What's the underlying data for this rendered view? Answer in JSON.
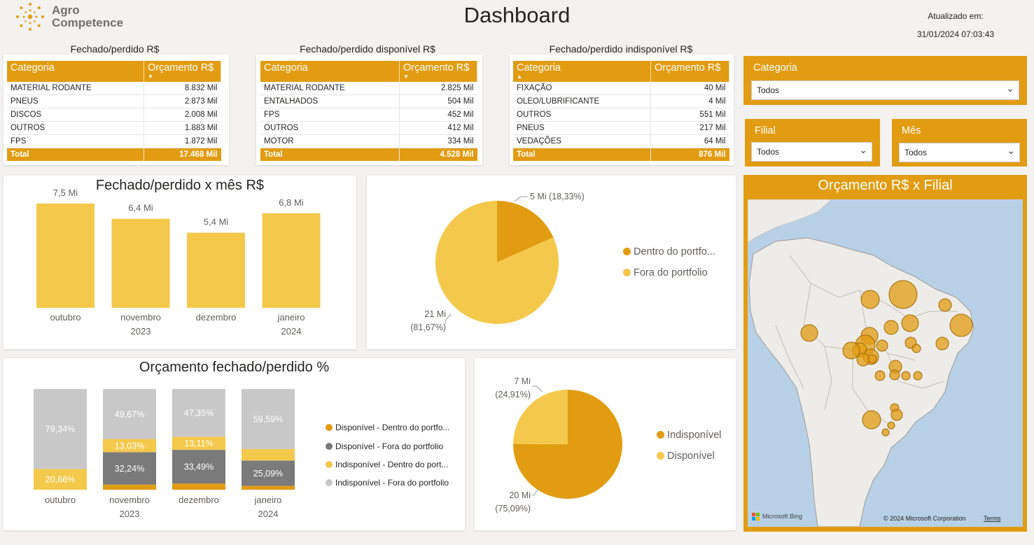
{
  "header": {
    "logo_line1": "Agro",
    "logo_line2": "Competence",
    "title": "Dashboard",
    "updated_label": "Atualizado em:",
    "updated_value": "31/01/2024 07:03:43"
  },
  "tables": [
    {
      "title": "Fechado/perdido R$",
      "col1": "Categoria",
      "col2": "Orçamento R$",
      "rows": [
        {
          "cat": "MATERIAL RODANTE",
          "val": "8.832 Mil"
        },
        {
          "cat": "PNEUS",
          "val": "2.873 Mil"
        },
        {
          "cat": "DISCOS",
          "val": "2.008 Mil"
        },
        {
          "cat": "OUTROS",
          "val": "1.883 Mil"
        },
        {
          "cat": "FPS",
          "val": "1.872 Mil"
        }
      ],
      "total_label": "Total",
      "total_value": "17.468 Mil"
    },
    {
      "title": "Fechado/perdido disponível R$",
      "col1": "Categoria",
      "col2": "Orçamento R$",
      "rows": [
        {
          "cat": "MATERIAL RODANTE",
          "val": "2.825 Mil"
        },
        {
          "cat": "ENTALHADOS",
          "val": "504 Mil"
        },
        {
          "cat": "FPS",
          "val": "452 Mil"
        },
        {
          "cat": "OUTROS",
          "val": "412 Mil"
        },
        {
          "cat": "MOTOR",
          "val": "334 Mil"
        }
      ],
      "total_label": "Total",
      "total_value": "4.528 Mil"
    },
    {
      "title": "Fechado/perdido indisponível R$",
      "col1": "Categoria",
      "col2": "Orçamento R$",
      "rows": [
        {
          "cat": "FIXAÇÃO",
          "val": "40 Mil"
        },
        {
          "cat": "OLEO/LUBRIFICANTE",
          "val": "4 Mil"
        },
        {
          "cat": "OUTROS",
          "val": "551 Mil"
        },
        {
          "cat": "PNEUS",
          "val": "217 Mil"
        },
        {
          "cat": "VEDAÇÕES",
          "val": "64 Mil"
        }
      ],
      "total_label": "Total",
      "total_value": "876 Mil"
    }
  ],
  "slicers": {
    "categoria": {
      "label": "Categoria",
      "value": "Todos"
    },
    "filial": {
      "label": "Filial",
      "value": "Todos"
    },
    "mes": {
      "label": "Mês",
      "value": "Todos"
    }
  },
  "map": {
    "title": "Orçamento R$ x Filial",
    "attribution_left": "Microsoft Bing",
    "attribution_right": "© 2024 Microsoft Corporation",
    "terms": "Terms"
  },
  "colors": {
    "gold": "#e29c12",
    "yellow": "#f4c84b",
    "gray": "#c8c8c8",
    "dark_gray": "#7a7a7a"
  },
  "chart_data": [
    {
      "id": "bar_month",
      "type": "bar",
      "title": "Fechado/perdido x mês R$",
      "categories": [
        "outubro",
        "novembro",
        "dezembro",
        "janeiro"
      ],
      "year_labels": [
        "",
        "2023",
        "",
        "2024"
      ],
      "values": [
        7.5,
        6.4,
        5.4,
        6.8
      ],
      "value_labels": [
        "7,5 Mi",
        "6,4 Mi",
        "5,4 Mi",
        "6,8 Mi"
      ],
      "ylim": [
        0,
        9
      ]
    },
    {
      "id": "pie_portfolio",
      "type": "pie",
      "series": [
        {
          "name": "Dentro do portfo...",
          "value": 5,
          "label": "5 Mi (18,33%)",
          "color": "#e29c12"
        },
        {
          "name": "Fora do portfolio",
          "value": 21,
          "label_value": "21 Mi",
          "label_pct": "(81,67%)",
          "color": "#f4c84b"
        }
      ],
      "percentages": [
        18.33,
        81.67
      ],
      "legend_position": "right"
    },
    {
      "id": "stacked_pct",
      "type": "bar",
      "stacked": true,
      "title": "Orçamento fechado/perdido %",
      "categories": [
        "outubro",
        "novembro",
        "dezembro",
        "janeiro"
      ],
      "year_labels": [
        "",
        "2023",
        "",
        "2024"
      ],
      "series": [
        {
          "name": "Disponível - Dentro do portfo...",
          "color": "#e29c12",
          "values": [
            0,
            5.06,
            6.05,
            3.88
          ]
        },
        {
          "name": "Disponível - Fora do portfolio",
          "color": "#7a7a7a",
          "values": [
            0,
            32.24,
            33.49,
            25.09
          ]
        },
        {
          "name": "Indisponível - Dentro do port...",
          "color": "#f4c84b",
          "values": [
            20.66,
            13.03,
            13.11,
            11.44
          ]
        },
        {
          "name": "Indisponível - Fora do portfolio",
          "color": "#c8c8c8",
          "values": [
            79.34,
            49.67,
            47.35,
            59.59
          ]
        }
      ],
      "data_labels": {
        "Disponível - Fora do portfolio": [
          "",
          "32,24%",
          "33,49%",
          "25,09%"
        ],
        "Indisponível - Dentro do port...": [
          "20,66%",
          "13,03%",
          "13,11%",
          ""
        ],
        "Indisponível - Fora do portfolio": [
          "79,34%",
          "49,67%",
          "47,35%",
          "59,59%"
        ]
      },
      "ylim": [
        0,
        100
      ]
    },
    {
      "id": "pie_availability",
      "type": "pie",
      "series": [
        {
          "name": "Indisponível",
          "value": 20,
          "label_value": "20 Mi",
          "label_pct": "(75,09%)",
          "color": "#e29c12"
        },
        {
          "name": "Disponível",
          "value": 7,
          "label_value": "7 Mi",
          "label_pct": "(24,91%)",
          "color": "#f4c84b"
        }
      ],
      "percentages": [
        75.09,
        24.91
      ],
      "legend_position": "right"
    }
  ]
}
